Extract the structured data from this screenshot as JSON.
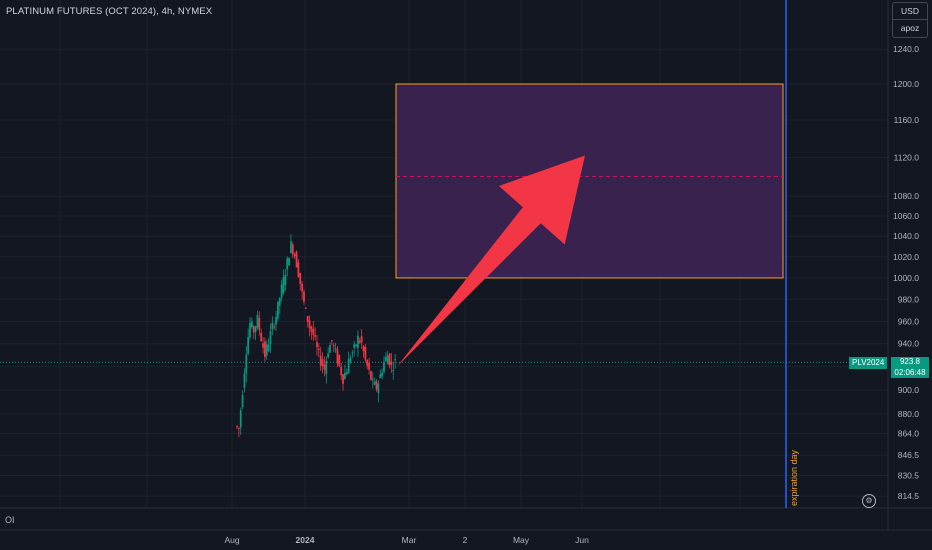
{
  "header": {
    "title": "PLATINUM FUTURES (OCT 2024), 4h, NYMEX"
  },
  "currency_box": {
    "currency": "USD",
    "label": "apoz"
  },
  "price_tag": {
    "symbol": "PLV2024",
    "price": "923.8",
    "countdown": "02:06:48"
  },
  "oi_label": "OI",
  "settings_icon": "gear-icon",
  "chart_data": {
    "type": "candlestick",
    "title": "PLATINUM FUTURES (OCT 2024), 4h, NYMEX",
    "y_axis": {
      "ticks": [
        "1240.0",
        "1200.0",
        "1160.0",
        "1120.0",
        "1080.0",
        "1060.0",
        "1040.0",
        "1020.0",
        "1000.0",
        "980.0",
        "960.0",
        "940.0",
        "920.0",
        "900.0",
        "880.0",
        "864.0",
        "846.5",
        "830.5",
        "814.5"
      ],
      "scale": "log",
      "range": [
        810,
        1260
      ]
    },
    "x_axis": {
      "ticks": [
        "Aug",
        "2024",
        "Mar",
        "2",
        "May",
        "Jun"
      ]
    },
    "current_price": 923.8,
    "target_zone": {
      "top": 1200,
      "bottom": 1000,
      "midline": 1100
    },
    "arrow": {
      "from_price": 920,
      "to_price": 1122,
      "direction": "up"
    },
    "vertical_line_label": "expiration day",
    "price_path": [
      870,
      868,
      900,
      935,
      958,
      952,
      962,
      945,
      930,
      942,
      955,
      965,
      982,
      998,
      1015,
      1032,
      1022,
      1005,
      985,
      968,
      955,
      948,
      935,
      925,
      918,
      935,
      942,
      932,
      920,
      910,
      918,
      930,
      935,
      945,
      940,
      925,
      915,
      905,
      902,
      912,
      924,
      930,
      920,
      924
    ],
    "colors": {
      "up": "#089981",
      "down": "#f23645",
      "zone_fill": "#3f2453",
      "zone_border": "#f7a21b",
      "arrow": "#f23645",
      "vline": "#2962ff",
      "price": "#089981"
    },
    "grid": true
  }
}
